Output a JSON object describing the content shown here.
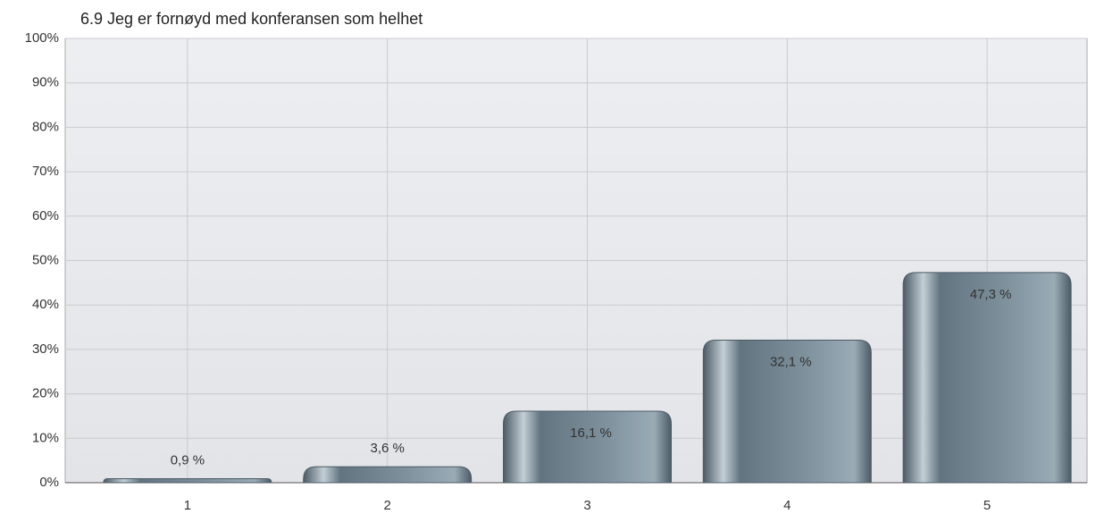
{
  "chart_data": {
    "type": "bar",
    "title": "6.9 Jeg er fornøyd med konferansen som helhet",
    "categories": [
      "1",
      "2",
      "3",
      "4",
      "5"
    ],
    "values": [
      0.9,
      3.6,
      16.1,
      32.1,
      47.3
    ],
    "value_labels": [
      "0,9 %",
      "3,6 %",
      "16,1 %",
      "32,1 %",
      "47,3 %"
    ],
    "color": "#6f818d",
    "ylim": [
      0,
      100
    ],
    "yticks": [
      {
        "value": 0,
        "label": "0%"
      },
      {
        "value": 10,
        "label": "10%"
      },
      {
        "value": 20,
        "label": "20%"
      },
      {
        "value": 30,
        "label": "30%"
      },
      {
        "value": 40,
        "label": "40%"
      },
      {
        "value": 50,
        "label": "50%"
      },
      {
        "value": 60,
        "label": "60%"
      },
      {
        "value": 70,
        "label": "70%"
      },
      {
        "value": 80,
        "label": "80%"
      },
      {
        "value": 90,
        "label": "90%"
      },
      {
        "value": 100,
        "label": "100%"
      }
    ],
    "grid": true
  }
}
